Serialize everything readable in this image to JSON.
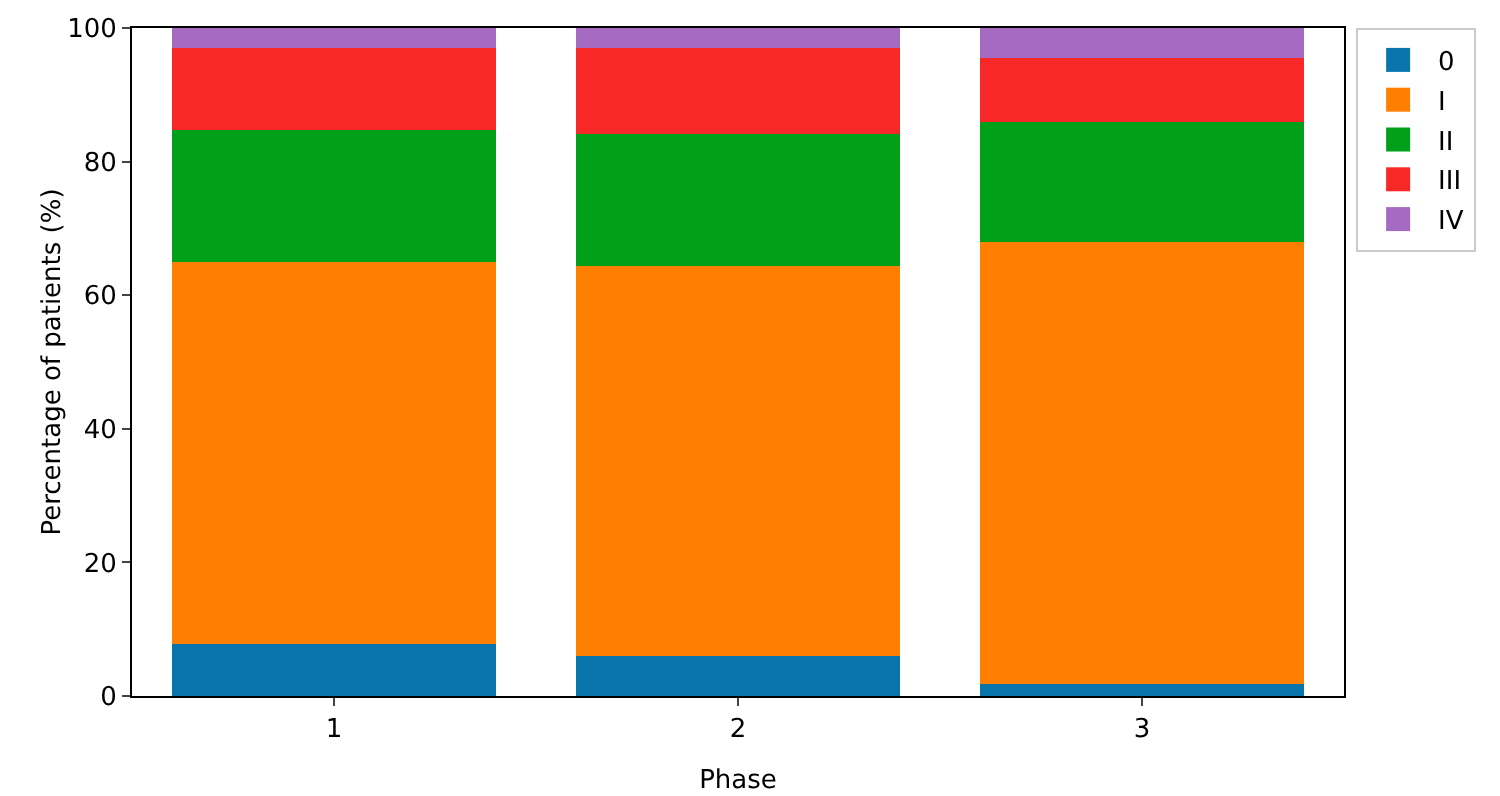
{
  "chart_data": {
    "type": "bar",
    "stacked": true,
    "xlabel": "Phase",
    "ylabel": "Percentage of patients (%)",
    "categories": [
      "1",
      "2",
      "3"
    ],
    "ylim": [
      0,
      100
    ],
    "yticks": [
      0,
      20,
      40,
      60,
      80,
      100
    ],
    "grid": false,
    "legend": "top right",
    "series": [
      {
        "name": "0",
        "color": "#0a75ad",
        "values": [
          7.8,
          6.0,
          1.8
        ]
      },
      {
        "name": "I",
        "color": "#ff8000",
        "values": [
          57.2,
          58.4,
          66.2
        ]
      },
      {
        "name": "II",
        "color": "#00a01a",
        "values": [
          19.7,
          19.7,
          17.9
        ]
      },
      {
        "name": "III",
        "color": "#f82828",
        "values": [
          12.3,
          12.9,
          9.6
        ]
      },
      {
        "name": "IV",
        "color": "#a56bc2",
        "values": [
          3.0,
          3.0,
          4.5
        ]
      }
    ]
  }
}
